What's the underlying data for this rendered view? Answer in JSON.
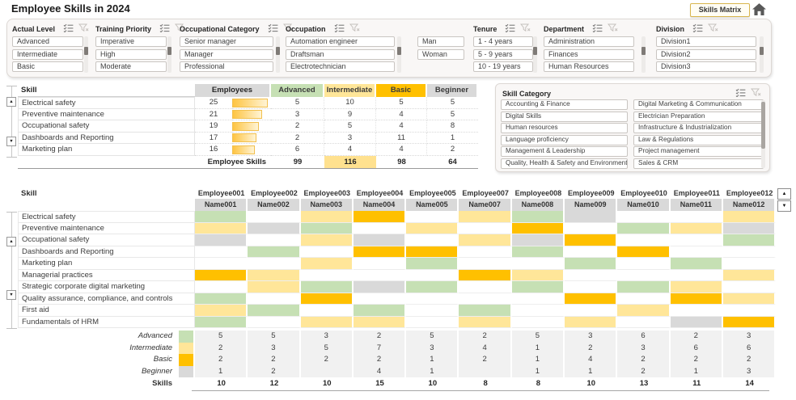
{
  "title": "Employee Skills in 2024",
  "header": {
    "matrix_button": "Skills Matrix"
  },
  "icons": {
    "home-icon": "house-shape",
    "multiselect-icon": "checklist-with-checkmarks",
    "clear-filter-icon": "funnel-with-x",
    "scroll-up-icon": "▲",
    "scroll-down-icon": "▼"
  },
  "colors": {
    "advanced": "#C6E0B4",
    "intermediate": "#FFE699",
    "basic": "#FFC000",
    "beginner": "#D9D9D9",
    "highlight": "#FFE18F",
    "summary_bg": "#F1F1F1"
  },
  "slicers": {
    "top": [
      {
        "id": "actual-level",
        "title": "Actual Level",
        "items": [
          "Advanced",
          "Intermediate",
          "Basic"
        ]
      },
      {
        "id": "training-priority",
        "title": "Training Priority",
        "items": [
          "Imperative",
          "High",
          "Moderate"
        ]
      },
      {
        "id": "occupational-category",
        "title": "Occupational Category",
        "items": [
          "Senior manager",
          "Manager",
          "Professional"
        ]
      },
      {
        "id": "occupation",
        "title": "Occupation",
        "items": [
          "Automation engineer",
          "Draftsman",
          "Electrotechnician"
        ]
      },
      {
        "id": "gender",
        "title": "",
        "items": [
          "Man",
          "Woman"
        ]
      },
      {
        "id": "tenure",
        "title": "Tenure",
        "items": [
          "1 - 4 years",
          "5 - 9 years",
          "10 - 19 years"
        ]
      },
      {
        "id": "department",
        "title": "Department",
        "items": [
          "Administration",
          "Finances",
          "Human Resources"
        ]
      },
      {
        "id": "division",
        "title": "Division",
        "items": [
          "Division1",
          "Division2",
          "Division3"
        ]
      }
    ],
    "skill_category": {
      "title": "Skill Category",
      "columns": [
        [
          "Accounting & Finance",
          "Digital Skills",
          "Human resources",
          "Language proficiency",
          "Management & Leadership",
          "Quality, Health & Safety and Environmental"
        ],
        [
          "Digital Marketing & Communication",
          "Electrician Preparation",
          "Infrastructure & Industrialization",
          "Law & Regulations",
          "Project management",
          "Sales & CRM"
        ]
      ]
    }
  },
  "skills_table": {
    "headers": {
      "skill": "Skill",
      "employees": "Employees",
      "levels": [
        "Advanced",
        "Intermediate",
        "Basic",
        "Beginner"
      ]
    },
    "max_employees": 25,
    "rows": [
      {
        "skill": "Electrical safety",
        "employees": 25,
        "values": [
          5,
          10,
          5,
          5
        ]
      },
      {
        "skill": "Preventive maintenance",
        "employees": 21,
        "values": [
          3,
          9,
          4,
          5
        ]
      },
      {
        "skill": "Occupational safety",
        "employees": 19,
        "values": [
          2,
          5,
          4,
          8
        ]
      },
      {
        "skill": "Dashboards and Reporting",
        "employees": 17,
        "values": [
          2,
          3,
          11,
          1
        ]
      },
      {
        "skill": "Marketing plan",
        "employees": 16,
        "values": [
          6,
          4,
          4,
          2
        ]
      }
    ],
    "totals": {
      "label": "Employee Skills",
      "values": [
        99,
        116,
        98,
        64
      ],
      "highlight_index": 1
    }
  },
  "matrix": {
    "skill_header": "Skill",
    "employees": [
      {
        "id": "Employee001",
        "name": "Name001"
      },
      {
        "id": "Employee002",
        "name": "Name002"
      },
      {
        "id": "Employee003",
        "name": "Name003"
      },
      {
        "id": "Employee004",
        "name": "Name004"
      },
      {
        "id": "Employee005",
        "name": "Name005"
      },
      {
        "id": "Employee007",
        "name": "Name007"
      },
      {
        "id": "Employee008",
        "name": "Name008"
      },
      {
        "id": "Employee009",
        "name": "Name009"
      },
      {
        "id": "Employee010",
        "name": "Name010"
      },
      {
        "id": "Employee011",
        "name": "Name011"
      },
      {
        "id": "Employee012",
        "name": "Name012"
      }
    ],
    "skills": [
      "Electrical safety",
      "Preventive maintenance",
      "Occupational safety",
      "Dashboards and Reporting",
      "Marketing plan",
      "Managerial practices",
      "Strategic corporate digital marketing",
      "Quality assurance, compliance, and controls",
      "First aid",
      "Fundamentals of HRM"
    ],
    "legend_map": {
      "A": "advanced",
      "I": "intermediate",
      "B": "basic",
      "G": "beginner"
    },
    "cells": [
      [
        "A",
        "",
        "I",
        "B",
        "",
        "I",
        "A",
        "G",
        "",
        "",
        "I"
      ],
      [
        "I",
        "G",
        "A",
        "",
        "I",
        "",
        "B",
        "",
        "A",
        "I",
        "G"
      ],
      [
        "G",
        "",
        "I",
        "G",
        "",
        "I",
        "G",
        "B",
        "",
        "",
        "A"
      ],
      [
        "",
        "A",
        "",
        "B",
        "B",
        "",
        "A",
        "",
        "B",
        "",
        ""
      ],
      [
        "",
        "",
        "I",
        "",
        "A",
        "",
        "",
        "A",
        "",
        "A",
        ""
      ],
      [
        "B",
        "I",
        "",
        "",
        "",
        "B",
        "I",
        "",
        "",
        "",
        "I"
      ],
      [
        "",
        "I",
        "A",
        "G",
        "A",
        "",
        "A",
        "",
        "A",
        "I",
        ""
      ],
      [
        "A",
        "",
        "B",
        "",
        "",
        "",
        "",
        "B",
        "",
        "B",
        "I"
      ],
      [
        "I",
        "A",
        "",
        "A",
        "",
        "A",
        "",
        "",
        "I",
        "",
        ""
      ],
      [
        "A",
        "",
        "I",
        "I",
        "",
        "I",
        "",
        "I",
        "",
        "G",
        "B"
      ]
    ]
  },
  "summary": {
    "rows": [
      {
        "label": "Advanced",
        "level": "advanced",
        "values": [
          5,
          5,
          3,
          2,
          5,
          2,
          5,
          3,
          6,
          2,
          3
        ]
      },
      {
        "label": "Intermediate",
        "level": "intermediate",
        "values": [
          2,
          3,
          5,
          7,
          3,
          4,
          1,
          2,
          3,
          6,
          6
        ]
      },
      {
        "label": "Basic",
        "level": "basic",
        "values": [
          2,
          2,
          2,
          2,
          1,
          2,
          1,
          4,
          2,
          2,
          2
        ]
      },
      {
        "label": "Beginner",
        "level": "beginner",
        "values": [
          1,
          2,
          "",
          4,
          1,
          "",
          1,
          1,
          2,
          1,
          3
        ]
      }
    ],
    "skills_row": {
      "label": "Skills",
      "values": [
        10,
        12,
        10,
        15,
        10,
        8,
        8,
        10,
        13,
        11,
        14
      ]
    }
  }
}
